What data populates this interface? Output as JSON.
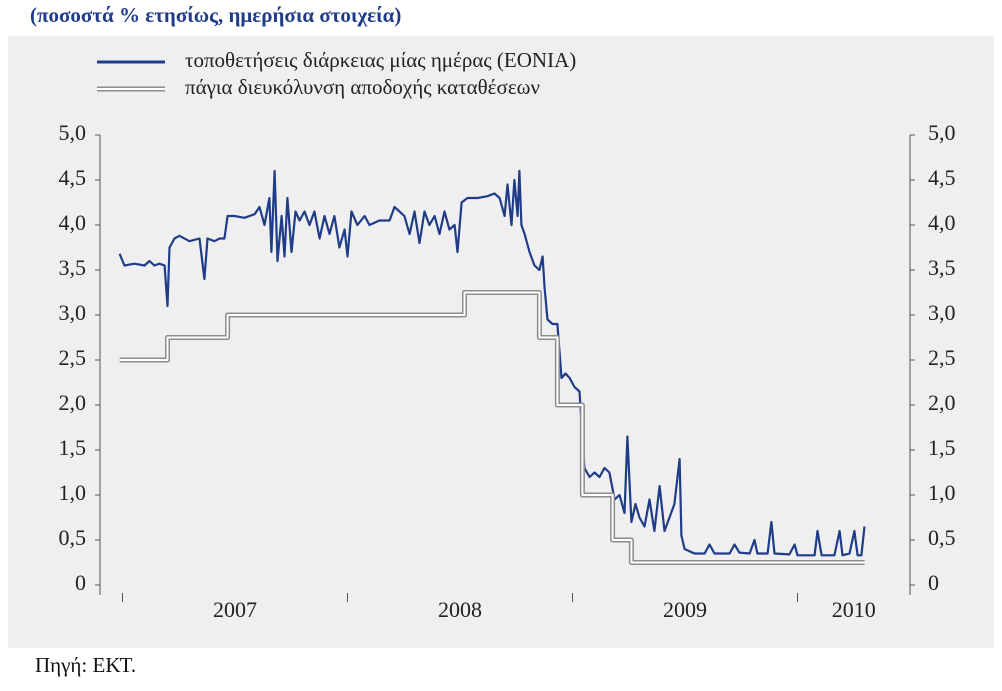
{
  "chart_data": {
    "type": "line",
    "title": "(ποσοστά % ετησίως, ημερήσια στοιχεία)",
    "source": "Πηγή: ΕΚΤ.",
    "xlim": [
      2006.9,
      2010.5
    ],
    "xticks": [
      {
        "value": 2007.5,
        "label": "2007"
      },
      {
        "value": 2008.5,
        "label": "2008"
      },
      {
        "value": 2009.5,
        "label": "2009"
      },
      {
        "value": 2010.5,
        "label": "2010"
      }
    ],
    "ylim": [
      0,
      5
    ],
    "yticks": [
      0,
      {
        "value": 0.5,
        "label": "0,5"
      },
      {
        "value": 1,
        "label": "1,0"
      },
      {
        "value": 1.5,
        "label": "1,5"
      },
      {
        "value": 2,
        "label": "2,0"
      },
      {
        "value": 2.5,
        "label": "2,5"
      },
      {
        "value": 3,
        "label": "3,0"
      },
      {
        "value": 3.5,
        "label": "3,5"
      },
      {
        "value": 4,
        "label": "4,0"
      },
      {
        "value": 4.5,
        "label": "4,5"
      },
      {
        "value": 5,
        "label": "5,0"
      }
    ],
    "y2lim": [
      0,
      5
    ],
    "y2ticks": [
      0,
      {
        "value": 0.5,
        "label": "0,5"
      },
      {
        "value": 1,
        "label": "1,0"
      },
      {
        "value": 1.5,
        "label": "1,5"
      },
      {
        "value": 2,
        "label": "2,0"
      },
      {
        "value": 2.5,
        "label": "2,5"
      },
      {
        "value": 3,
        "label": "3,0"
      },
      {
        "value": 3.5,
        "label": "3,5"
      },
      {
        "value": 4,
        "label": "4,0"
      },
      {
        "value": 4.5,
        "label": "4,5"
      },
      {
        "value": 5,
        "label": "5,0"
      }
    ],
    "series": [
      {
        "name": "τοποθετήσεις διάρκειας μίας ημέρας (EONIA)",
        "color": "#1f3c88",
        "style": "solid",
        "x": [
          2006.987,
          2007.009,
          2007.053,
          2007.098,
          2007.12,
          2007.142,
          2007.164,
          2007.187,
          2007.2,
          2007.209,
          2007.231,
          2007.253,
          2007.298,
          2007.342,
          2007.364,
          2007.378,
          2007.409,
          2007.431,
          2007.453,
          2007.467,
          2007.498,
          2007.542,
          2007.587,
          2007.609,
          2007.631,
          2007.653,
          2007.662,
          2007.676,
          2007.689,
          2007.707,
          2007.72,
          2007.733,
          2007.751,
          2007.769,
          2007.787,
          2007.809,
          2007.831,
          2007.853,
          2007.876,
          2007.898,
          2007.92,
          2007.942,
          2007.964,
          2007.987,
          2008.0,
          2008.018,
          2008.044,
          2008.076,
          2008.098,
          2008.142,
          2008.187,
          2008.209,
          2008.231,
          2008.253,
          2008.276,
          2008.298,
          2008.32,
          2008.342,
          2008.364,
          2008.387,
          2008.409,
          2008.431,
          2008.453,
          2008.476,
          2008.489,
          2008.507,
          2008.533,
          2008.578,
          2008.622,
          2008.653,
          2008.676,
          2008.698,
          2008.711,
          2008.729,
          2008.742,
          2008.756,
          2008.764,
          2008.773,
          2008.787,
          2008.809,
          2008.831,
          2008.853,
          2008.867,
          2008.876,
          2008.889,
          2008.911,
          2008.933,
          2008.951,
          2008.969,
          2008.987,
          2009.009,
          2009.031,
          2009.053,
          2009.076,
          2009.098,
          2009.12,
          2009.142,
          2009.164,
          2009.187,
          2009.209,
          2009.231,
          2009.244,
          2009.262,
          2009.28,
          2009.298,
          2009.32,
          2009.342,
          2009.364,
          2009.387,
          2009.409,
          2009.431,
          2009.453,
          2009.476,
          2009.484,
          2009.498,
          2009.542,
          2009.587,
          2009.609,
          2009.631,
          2009.698,
          2009.72,
          2009.742,
          2009.787,
          2009.809,
          2009.822,
          2009.867,
          2009.884,
          2009.898,
          2009.964,
          2009.987,
          2010.0,
          2010.076,
          2010.089,
          2010.107,
          2010.164,
          2010.187,
          2010.2,
          2010.231,
          2010.253,
          2010.267,
          2010.284,
          2010.298
        ],
        "values": [
          3.68,
          3.55,
          3.57,
          3.55,
          3.6,
          3.55,
          3.57,
          3.55,
          3.1,
          3.75,
          3.85,
          3.88,
          3.82,
          3.85,
          3.4,
          3.85,
          3.82,
          3.85,
          3.85,
          4.1,
          4.1,
          4.08,
          4.12,
          4.2,
          4.0,
          4.3,
          3.7,
          4.6,
          3.6,
          4.1,
          3.65,
          4.3,
          3.7,
          4.15,
          4.05,
          4.15,
          4.0,
          4.15,
          3.85,
          4.1,
          3.9,
          4.1,
          3.75,
          3.95,
          3.65,
          4.15,
          4.0,
          4.1,
          4.0,
          4.05,
          4.05,
          4.2,
          4.15,
          4.1,
          3.9,
          4.15,
          3.8,
          4.15,
          4.0,
          4.1,
          3.9,
          4.15,
          3.95,
          4.0,
          3.7,
          4.25,
          4.3,
          4.3,
          4.32,
          4.35,
          4.3,
          4.1,
          4.45,
          4.0,
          4.5,
          4.1,
          4.6,
          4.0,
          3.9,
          3.7,
          3.55,
          3.5,
          3.65,
          3.3,
          2.95,
          2.9,
          2.9,
          2.3,
          2.35,
          2.3,
          2.2,
          2.15,
          1.3,
          1.2,
          1.25,
          1.2,
          1.3,
          1.25,
          0.95,
          1.0,
          0.8,
          1.65,
          0.7,
          0.9,
          0.75,
          0.65,
          0.95,
          0.6,
          1.1,
          0.6,
          0.75,
          0.9,
          1.4,
          0.55,
          0.4,
          0.35,
          0.35,
          0.45,
          0.35,
          0.35,
          0.45,
          0.36,
          0.35,
          0.5,
          0.35,
          0.35,
          0.7,
          0.35,
          0.34,
          0.45,
          0.33,
          0.33,
          0.6,
          0.33,
          0.33,
          0.6,
          0.33,
          0.35,
          0.6,
          0.33,
          0.33,
          0.65
        ]
      },
      {
        "name": "πάγια διευκόλυνση αποδοχής καταθέσεων",
        "color": "#8c8c8c",
        "style": "double",
        "x": [
          2006.987,
          2007.2,
          2007.2,
          2007.467,
          2007.467,
          2008.52,
          2008.52,
          2008.853,
          2008.853,
          2008.933,
          2008.933,
          2009.044,
          2009.044,
          2009.178,
          2009.178,
          2009.262,
          2009.262,
          2010.298
        ],
        "values": [
          2.5,
          2.5,
          2.75,
          2.75,
          3,
          3,
          3.25,
          3.25,
          2.75,
          2.75,
          2,
          2,
          1,
          1,
          0.5,
          0.5,
          0.25,
          0.25
        ]
      }
    ]
  }
}
